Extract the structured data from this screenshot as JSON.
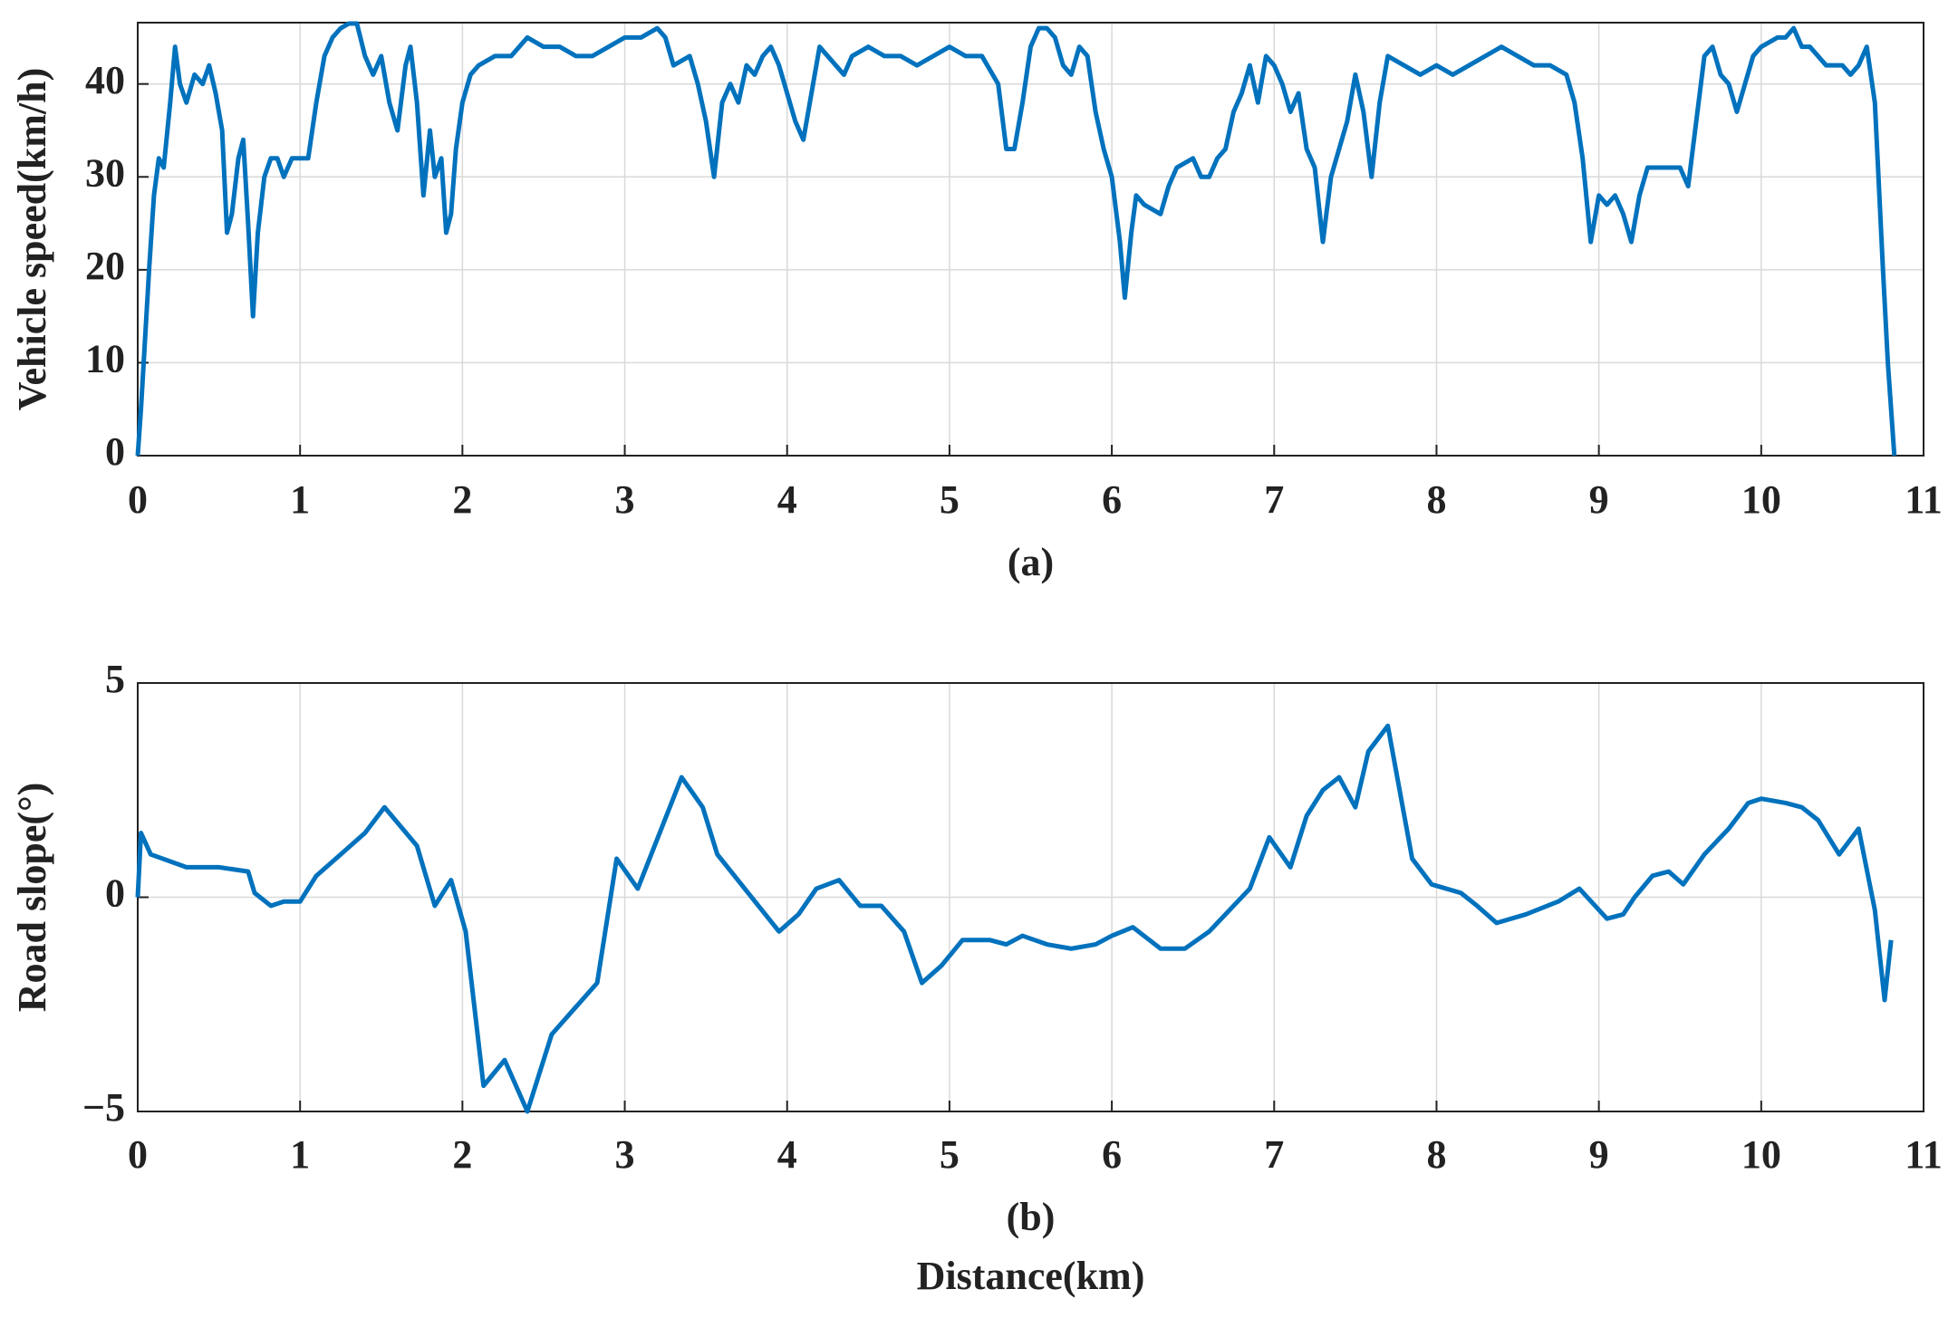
{
  "chart_data": [
    {
      "type": "line",
      "ylabel": "Vehicle speed(km/h)",
      "caption": "(a)",
      "color": "#0072BD",
      "grid": true,
      "xlim": [
        0,
        11
      ],
      "xticks": [
        0,
        1,
        2,
        3,
        4,
        5,
        6,
        7,
        8,
        9,
        10,
        11
      ],
      "ylim": [
        0,
        46.6
      ],
      "yticks": [
        0,
        10,
        20,
        30,
        40
      ],
      "x": [
        0,
        0.02,
        0.07,
        0.1,
        0.13,
        0.16,
        0.2,
        0.23,
        0.26,
        0.3,
        0.35,
        0.4,
        0.44,
        0.48,
        0.52,
        0.55,
        0.58,
        0.62,
        0.65,
        0.68,
        0.71,
        0.74,
        0.78,
        0.82,
        0.86,
        0.9,
        0.95,
        1.0,
        1.05,
        1.1,
        1.15,
        1.2,
        1.25,
        1.3,
        1.35,
        1.4,
        1.45,
        1.5,
        1.55,
        1.6,
        1.65,
        1.68,
        1.72,
        1.76,
        1.8,
        1.83,
        1.87,
        1.9,
        1.93,
        1.96,
        2.0,
        2.05,
        2.1,
        2.2,
        2.3,
        2.4,
        2.5,
        2.6,
        2.7,
        2.8,
        2.9,
        3.0,
        3.1,
        3.2,
        3.25,
        3.3,
        3.4,
        3.45,
        3.5,
        3.55,
        3.6,
        3.65,
        3.7,
        3.75,
        3.8,
        3.85,
        3.9,
        3.95,
        4.0,
        4.05,
        4.1,
        4.15,
        4.2,
        4.25,
        4.3,
        4.35,
        4.4,
        4.5,
        4.6,
        4.7,
        4.8,
        4.9,
        5.0,
        5.1,
        5.2,
        5.3,
        5.35,
        5.4,
        5.45,
        5.5,
        5.55,
        5.6,
        5.65,
        5.7,
        5.75,
        5.8,
        5.85,
        5.9,
        5.95,
        6.0,
        6.05,
        6.08,
        6.12,
        6.15,
        6.2,
        6.3,
        6.35,
        6.4,
        6.5,
        6.55,
        6.6,
        6.65,
        6.7,
        6.75,
        6.8,
        6.85,
        6.9,
        6.95,
        7.0,
        7.05,
        7.1,
        7.15,
        7.2,
        7.25,
        7.3,
        7.35,
        7.4,
        7.45,
        7.5,
        7.55,
        7.6,
        7.65,
        7.7,
        7.8,
        7.9,
        8.0,
        8.1,
        8.2,
        8.3,
        8.4,
        8.5,
        8.6,
        8.7,
        8.8,
        8.85,
        8.9,
        8.95,
        9.0,
        9.05,
        9.1,
        9.15,
        9.2,
        9.25,
        9.3,
        9.4,
        9.5,
        9.55,
        9.6,
        9.65,
        9.7,
        9.75,
        9.8,
        9.85,
        9.9,
        9.95,
        10.0,
        10.1,
        10.15,
        10.2,
        10.25,
        10.3,
        10.4,
        10.5,
        10.55,
        10.6,
        10.65,
        10.7,
        10.75,
        10.78,
        10.8,
        10.82
      ],
      "values": [
        0,
        5,
        20,
        28,
        32,
        31,
        38,
        44,
        40,
        38,
        41,
        40,
        42,
        39,
        35,
        24,
        26,
        32,
        34,
        25,
        15,
        24,
        30,
        32,
        32,
        30,
        32,
        32,
        32,
        38,
        43,
        45,
        46,
        46.5,
        46.5,
        43,
        41,
        43,
        38,
        35,
        42,
        44,
        38,
        28,
        35,
        30,
        32,
        24,
        26,
        33,
        38,
        41,
        42,
        43,
        43,
        45,
        44,
        44,
        43,
        43,
        44,
        45,
        45,
        46,
        45,
        42,
        43,
        40,
        36,
        30,
        38,
        40,
        38,
        42,
        41,
        43,
        44,
        42,
        39,
        36,
        34,
        39,
        44,
        43,
        42,
        41,
        43,
        44,
        43,
        43,
        42,
        43,
        44,
        43,
        43,
        40,
        33,
        33,
        38,
        44,
        46,
        46,
        45,
        42,
        41,
        44,
        43,
        37,
        33,
        30,
        23,
        17,
        24,
        28,
        27,
        26,
        29,
        31,
        32,
        30,
        30,
        32,
        33,
        37,
        39,
        42,
        38,
        43,
        42,
        40,
        37,
        39,
        33,
        31,
        23,
        30,
        33,
        36,
        41,
        37,
        30,
        38,
        43,
        42,
        41,
        42,
        41,
        42,
        43,
        44,
        43,
        42,
        42,
        41,
        38,
        32,
        23,
        28,
        27,
        28,
        26,
        23,
        28,
        31,
        31,
        31,
        29,
        36,
        43,
        44,
        41,
        40,
        37,
        40,
        43,
        44,
        45,
        45,
        46,
        44,
        44,
        42,
        42,
        41,
        42,
        44,
        38,
        20,
        10,
        5,
        0
      ]
    },
    {
      "type": "line",
      "ylabel": "Road slope(°)",
      "caption": "(b)",
      "xlabel": "Distance(km)",
      "color": "#0072BD",
      "grid": true,
      "xlim": [
        0,
        11
      ],
      "xticks": [
        0,
        1,
        2,
        3,
        4,
        5,
        6,
        7,
        8,
        9,
        10,
        11
      ],
      "ylim": [
        -5,
        5
      ],
      "yticks": [
        {
          "value": -5,
          "label": "−5"
        },
        0,
        5
      ],
      "x": [
        0,
        0.02,
        0.08,
        0.3,
        0.5,
        0.68,
        0.72,
        0.82,
        0.9,
        1.0,
        1.1,
        1.25,
        1.4,
        1.52,
        1.72,
        1.83,
        1.93,
        2.02,
        2.13,
        2.26,
        2.4,
        2.55,
        2.83,
        2.95,
        3.08,
        3.35,
        3.48,
        3.57,
        3.95,
        4.07,
        4.18,
        4.32,
        4.45,
        4.58,
        4.72,
        4.83,
        4.95,
        5.08,
        5.25,
        5.35,
        5.45,
        5.6,
        5.75,
        5.9,
        6.0,
        6.13,
        6.3,
        6.45,
        6.6,
        6.75,
        6.85,
        6.97,
        7.1,
        7.2,
        7.3,
        7.4,
        7.5,
        7.58,
        7.7,
        7.85,
        7.97,
        8.15,
        8.25,
        8.37,
        8.55,
        8.75,
        8.88,
        9.05,
        9.15,
        9.22,
        9.33,
        9.43,
        9.52,
        9.65,
        9.8,
        9.92,
        10.0,
        10.15,
        10.25,
        10.35,
        10.48,
        10.6,
        10.7,
        10.76,
        10.8
      ],
      "values": [
        0,
        1.5,
        1.0,
        0.7,
        0.7,
        0.6,
        0.1,
        -0.2,
        -0.1,
        -0.1,
        0.5,
        1.0,
        1.5,
        2.1,
        1.2,
        -0.2,
        0.4,
        -0.8,
        -4.4,
        -3.8,
        -5.0,
        -3.2,
        -2.0,
        0.9,
        0.2,
        2.8,
        2.1,
        1.0,
        -0.8,
        -0.4,
        0.2,
        0.4,
        -0.2,
        -0.2,
        -0.8,
        -2.0,
        -1.6,
        -1.0,
        -1.0,
        -1.1,
        -0.9,
        -1.1,
        -1.2,
        -1.1,
        -0.9,
        -0.7,
        -1.2,
        -1.2,
        -0.8,
        -0.2,
        0.2,
        1.4,
        0.7,
        1.9,
        2.5,
        2.8,
        2.1,
        3.4,
        4.0,
        0.9,
        0.3,
        0.1,
        -0.2,
        -0.6,
        -0.4,
        -0.1,
        0.2,
        -0.5,
        -0.4,
        0.0,
        0.5,
        0.6,
        0.3,
        1.0,
        1.6,
        2.2,
        2.3,
        2.2,
        2.1,
        1.8,
        1.0,
        1.6,
        -0.3,
        -2.4,
        -1.0
      ]
    }
  ]
}
